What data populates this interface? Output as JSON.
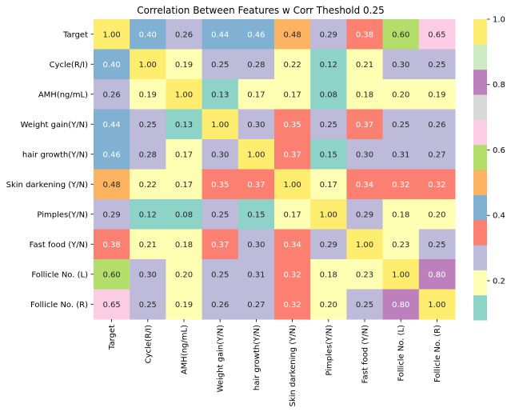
{
  "chart_data": {
    "type": "heatmap",
    "title": "Correlation Between Features w Corr Theshold 0.25",
    "rows": [
      "Target",
      "Cycle(R/I)",
      "AMH(ng/mL)",
      "Weight gain(Y/N)",
      "hair growth(Y/N)",
      "Skin darkening (Y/N)",
      "Pimples(Y/N)",
      "Fast food (Y/N)",
      "Follicle No. (L)",
      "Follicle No. (R)"
    ],
    "columns": [
      "Target",
      "Cycle(R/I)",
      "AMH(ng/mL)",
      "Weight gain(Y/N)",
      "hair growth(Y/N)",
      "Skin darkening (Y/N)",
      "Pimples(Y/N)",
      "Fast food (Y/N)",
      "Follicle No. (L)",
      "Follicle No. (R)"
    ],
    "values": [
      [
        1.0,
        0.4,
        0.26,
        0.44,
        0.46,
        0.48,
        0.29,
        0.38,
        0.6,
        0.65
      ],
      [
        0.4,
        1.0,
        0.19,
        0.25,
        0.28,
        0.22,
        0.12,
        0.21,
        0.3,
        0.25
      ],
      [
        0.26,
        0.19,
        1.0,
        0.13,
        0.17,
        0.17,
        0.08,
        0.18,
        0.2,
        0.19
      ],
      [
        0.44,
        0.25,
        0.13,
        1.0,
        0.3,
        0.35,
        0.25,
        0.37,
        0.25,
        0.26
      ],
      [
        0.46,
        0.28,
        0.17,
        0.3,
        1.0,
        0.37,
        0.15,
        0.3,
        0.31,
        0.27
      ],
      [
        0.48,
        0.22,
        0.17,
        0.35,
        0.37,
        1.0,
        0.17,
        0.34,
        0.32,
        0.32
      ],
      [
        0.29,
        0.12,
        0.08,
        0.25,
        0.15,
        0.17,
        1.0,
        0.29,
        0.18,
        0.2
      ],
      [
        0.38,
        0.21,
        0.18,
        0.37,
        0.3,
        0.34,
        0.29,
        1.0,
        0.23,
        0.25
      ],
      [
        0.6,
        0.3,
        0.2,
        0.25,
        0.31,
        0.32,
        0.18,
        0.23,
        1.0,
        0.8
      ],
      [
        0.65,
        0.25,
        0.19,
        0.26,
        0.27,
        0.32,
        0.2,
        0.25,
        0.8,
        1.0
      ]
    ],
    "value_format": "0.00",
    "colormap": {
      "name": "Set3",
      "vmin": 0.08,
      "vmax": 1.0,
      "colors": [
        "#8dd3c7",
        "#ffffb3",
        "#bebada",
        "#fb8072",
        "#80b1d3",
        "#fdb462",
        "#b3de69",
        "#fccde5",
        "#d9d9d9",
        "#bc80bd",
        "#ccebc5",
        "#ffed6f"
      ]
    },
    "colorbar_ticks": [
      "0.2",
      "0.4",
      "0.6",
      "0.8",
      "1.0"
    ],
    "colorbar_tick_values": [
      0.2,
      0.4,
      0.6,
      0.8,
      1.0
    ],
    "text_colors": {
      "dark_bg": "#ffffff",
      "light_bg": "#262626"
    }
  }
}
